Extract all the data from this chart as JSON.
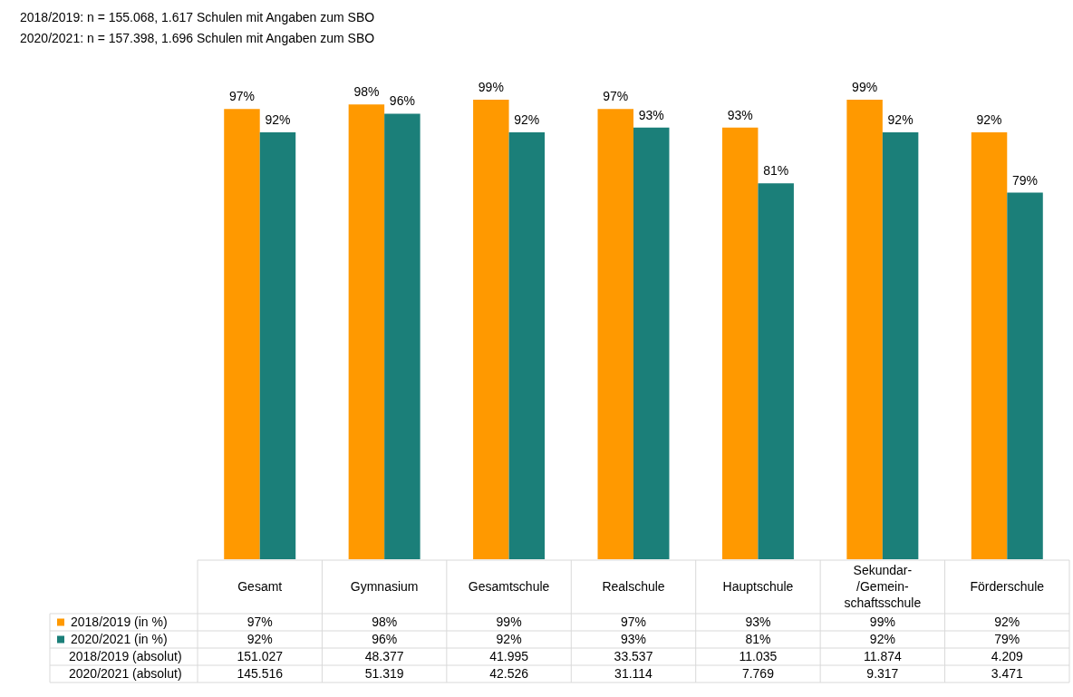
{
  "chart_data": {
    "type": "bar",
    "title": "2018/2019: n = 155.068, 1.617 Schulen mit Angaben zum SBO",
    "subtitle": "2020/2021: n = 157.398, 1.696 Schulen mit Angaben zum SBO",
    "categories": [
      "Gesamt",
      "Gymnasium",
      "Gesamtschule",
      "Realschule",
      "Hauptschule",
      "Sekundar-/Gemein-schaftsschule",
      "Förderschule"
    ],
    "series": [
      {
        "name": "2018/2019 (in %)",
        "color": "#ff9900",
        "values": [
          97,
          98,
          99,
          97,
          93,
          99,
          92
        ],
        "value_labels": [
          "97%",
          "98%",
          "99%",
          "97%",
          "93%",
          "99%",
          "92%"
        ]
      },
      {
        "name": "2020/2021  (in %)",
        "color": "#1b7f79",
        "values": [
          92,
          96,
          92,
          93,
          81,
          92,
          79
        ],
        "value_labels": [
          "92%",
          "96%",
          "92%",
          "93%",
          "81%",
          "92%",
          "79%"
        ]
      }
    ],
    "tick_labels": "x",
    "legend": "bottom left",
    "annotations": [
      "2018/2019 (absolut)",
      "151.027",
      "48.377",
      "41.995",
      "33.537",
      "11.035",
      "11.874",
      "4.209",
      "2020/2021 (absolut)",
      "145.516",
      "51.319",
      "42.526",
      "31.114",
      "7.769",
      "9.317",
      "3.471"
    ]
  }
}
